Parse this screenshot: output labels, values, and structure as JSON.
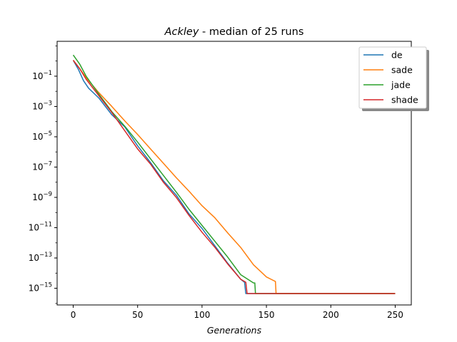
{
  "chart_data": {
    "type": "line",
    "title_italic": "Ackley",
    "title_rest": " - median of  25  runs",
    "xlabel": "Generations",
    "ylabel": "",
    "xlim": [
      -12.5,
      262.5
    ],
    "ylim_log10": [
      -16.1,
      1.3
    ],
    "yscale": "log",
    "x_ticks": [
      0,
      50,
      100,
      150,
      200,
      250
    ],
    "y_tick_exponents": [
      -15,
      -13,
      -11,
      -9,
      -7,
      -5,
      -3,
      -1
    ],
    "y_tick_labels": [
      "10",
      "10",
      "10",
      "10",
      "10",
      "10",
      "10",
      "10"
    ],
    "y_tick_powers": [
      "−15",
      "−13",
      "−11",
      "−9",
      "−7",
      "−5",
      "−3",
      "−1"
    ],
    "legend_position": "upper right",
    "series": [
      {
        "name": "de",
        "color": "#1f77b4",
        "points_log10": [
          [
            0,
            0.05
          ],
          [
            4,
            -0.55
          ],
          [
            8,
            -1.3
          ],
          [
            12,
            -1.8
          ],
          [
            20,
            -2.45
          ],
          [
            30,
            -3.55
          ],
          [
            40,
            -4.35
          ],
          [
            50,
            -5.6
          ],
          [
            60,
            -6.7
          ],
          [
            70,
            -7.9
          ],
          [
            80,
            -8.85
          ],
          [
            90,
            -10.1
          ],
          [
            100,
            -11.05
          ],
          [
            110,
            -12.2
          ],
          [
            120,
            -13.35
          ],
          [
            130,
            -14.4
          ],
          [
            133,
            -14.6
          ],
          [
            134,
            -15.35
          ],
          [
            250,
            -15.35
          ]
        ]
      },
      {
        "name": "sade",
        "color": "#ff7f0e",
        "points_log10": [
          [
            0,
            0.05
          ],
          [
            5,
            -0.5
          ],
          [
            10,
            -1.1
          ],
          [
            20,
            -2.1
          ],
          [
            30,
            -3.0
          ],
          [
            40,
            -3.95
          ],
          [
            50,
            -4.85
          ],
          [
            60,
            -5.8
          ],
          [
            70,
            -6.75
          ],
          [
            80,
            -7.7
          ],
          [
            90,
            -8.6
          ],
          [
            100,
            -9.55
          ],
          [
            110,
            -10.35
          ],
          [
            120,
            -11.35
          ],
          [
            130,
            -12.3
          ],
          [
            140,
            -13.45
          ],
          [
            150,
            -14.25
          ],
          [
            157,
            -14.55
          ],
          [
            157.5,
            -15.35
          ],
          [
            250,
            -15.35
          ]
        ]
      },
      {
        "name": "jade",
        "color": "#2ca02c",
        "points_log10": [
          [
            0,
            0.4
          ],
          [
            5,
            -0.2
          ],
          [
            10,
            -1.0
          ],
          [
            20,
            -2.2
          ],
          [
            30,
            -3.35
          ],
          [
            40,
            -4.3
          ],
          [
            50,
            -5.35
          ],
          [
            60,
            -6.45
          ],
          [
            70,
            -7.55
          ],
          [
            80,
            -8.65
          ],
          [
            90,
            -9.8
          ],
          [
            100,
            -10.85
          ],
          [
            110,
            -11.9
          ],
          [
            120,
            -12.95
          ],
          [
            130,
            -14.1
          ],
          [
            140,
            -14.65
          ],
          [
            141,
            -14.65
          ],
          [
            141.5,
            -15.35
          ],
          [
            250,
            -15.35
          ]
        ]
      },
      {
        "name": "shade",
        "color": "#d62728",
        "points_log10": [
          [
            0,
            0.05
          ],
          [
            5,
            -0.5
          ],
          [
            10,
            -1.2
          ],
          [
            20,
            -2.3
          ],
          [
            30,
            -3.4
          ],
          [
            40,
            -4.6
          ],
          [
            50,
            -5.8
          ],
          [
            60,
            -6.8
          ],
          [
            70,
            -8.0
          ],
          [
            80,
            -9.0
          ],
          [
            90,
            -10.2
          ],
          [
            100,
            -11.3
          ],
          [
            110,
            -12.3
          ],
          [
            120,
            -13.4
          ],
          [
            130,
            -14.4
          ],
          [
            134,
            -14.6
          ],
          [
            135,
            -15.35
          ],
          [
            250,
            -15.35
          ]
        ]
      }
    ]
  }
}
